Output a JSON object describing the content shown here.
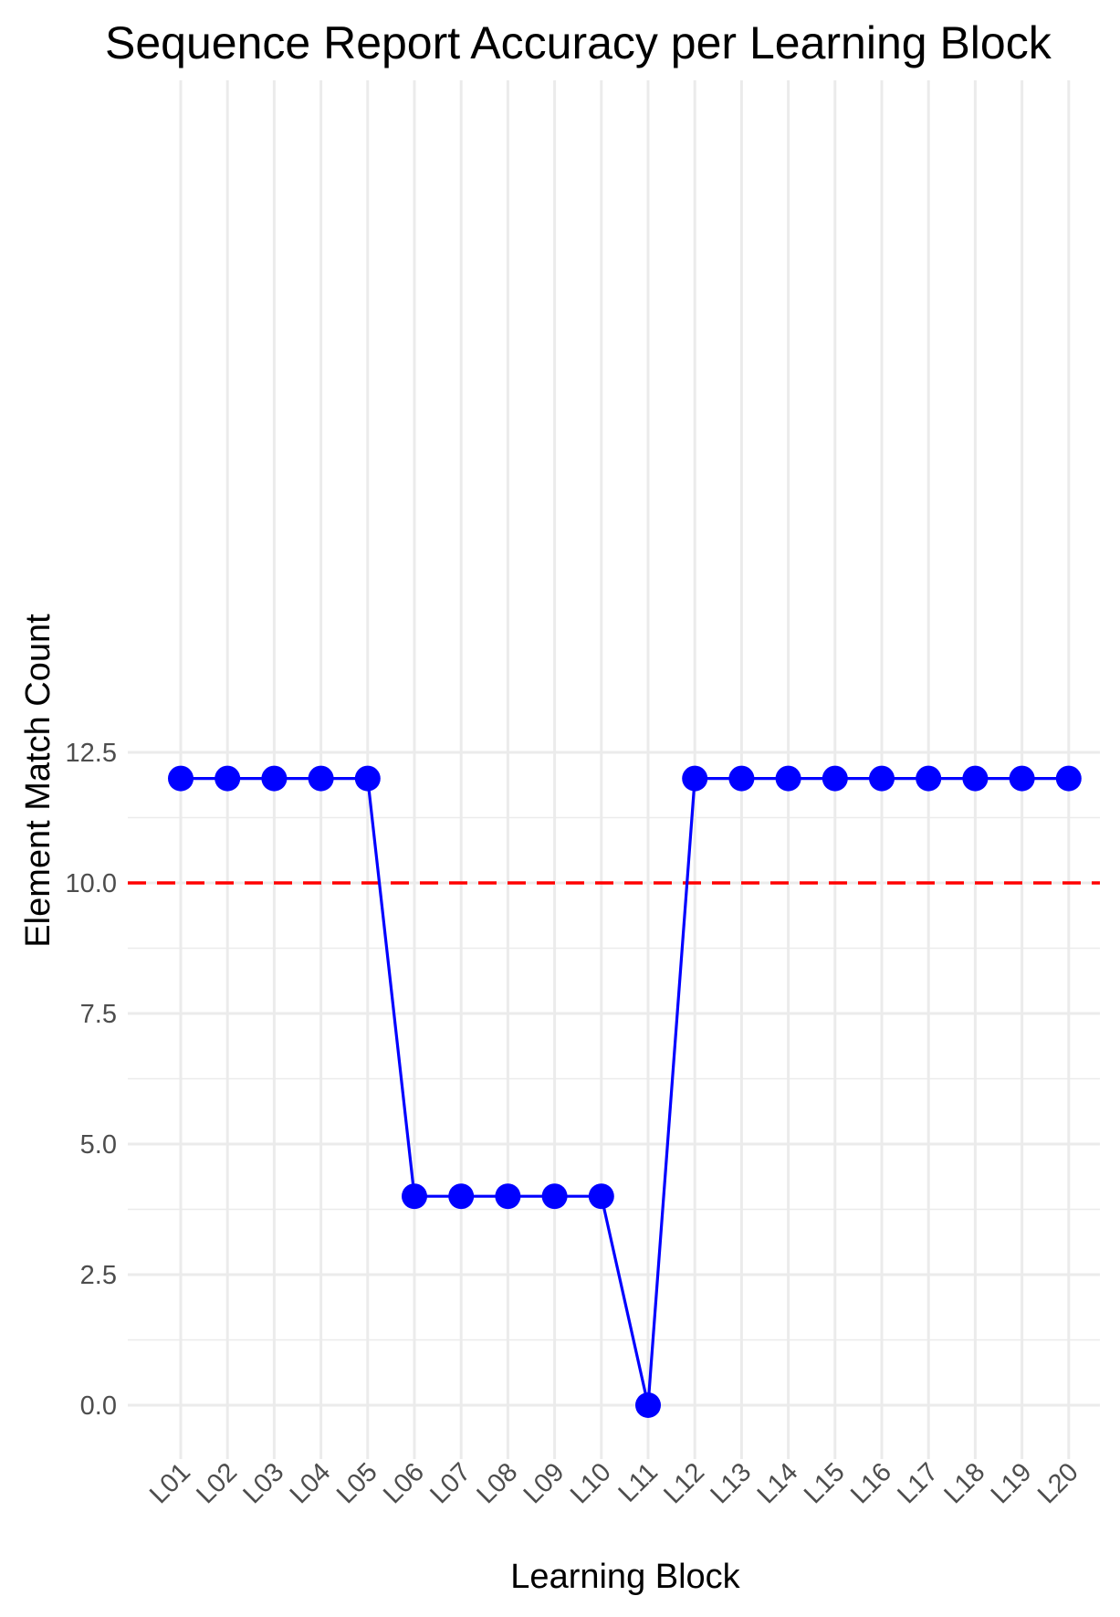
{
  "chart_data": {
    "type": "line",
    "title": "Sequence Report Accuracy per Learning Block",
    "xlabel": "Learning Block",
    "ylabel": "Element Match Count",
    "categories": [
      "L01",
      "L02",
      "L03",
      "L04",
      "L05",
      "L06",
      "L07",
      "L08",
      "L09",
      "L10",
      "L11",
      "L12",
      "L13",
      "L14",
      "L15",
      "L16",
      "L17",
      "L18",
      "L19",
      "L20"
    ],
    "values": [
      12,
      12,
      12,
      12,
      12,
      4,
      4,
      4,
      4,
      4,
      0,
      12,
      12,
      12,
      12,
      12,
      12,
      12,
      12,
      12
    ],
    "ylim": [
      -0.6,
      12.6
    ],
    "yticks": [
      0.0,
      2.5,
      5.0,
      7.5,
      10.0,
      12.5
    ],
    "ytick_labels": [
      "0.0",
      "2.5",
      "5.0",
      "7.5",
      "10.0",
      "12.5"
    ],
    "reference_line": {
      "y": 10,
      "style": "dashed",
      "color": "#ff0000"
    },
    "series_color": "#0000ff",
    "grid": true,
    "legend": "none",
    "x_tick_rotation": "45 degrees"
  }
}
